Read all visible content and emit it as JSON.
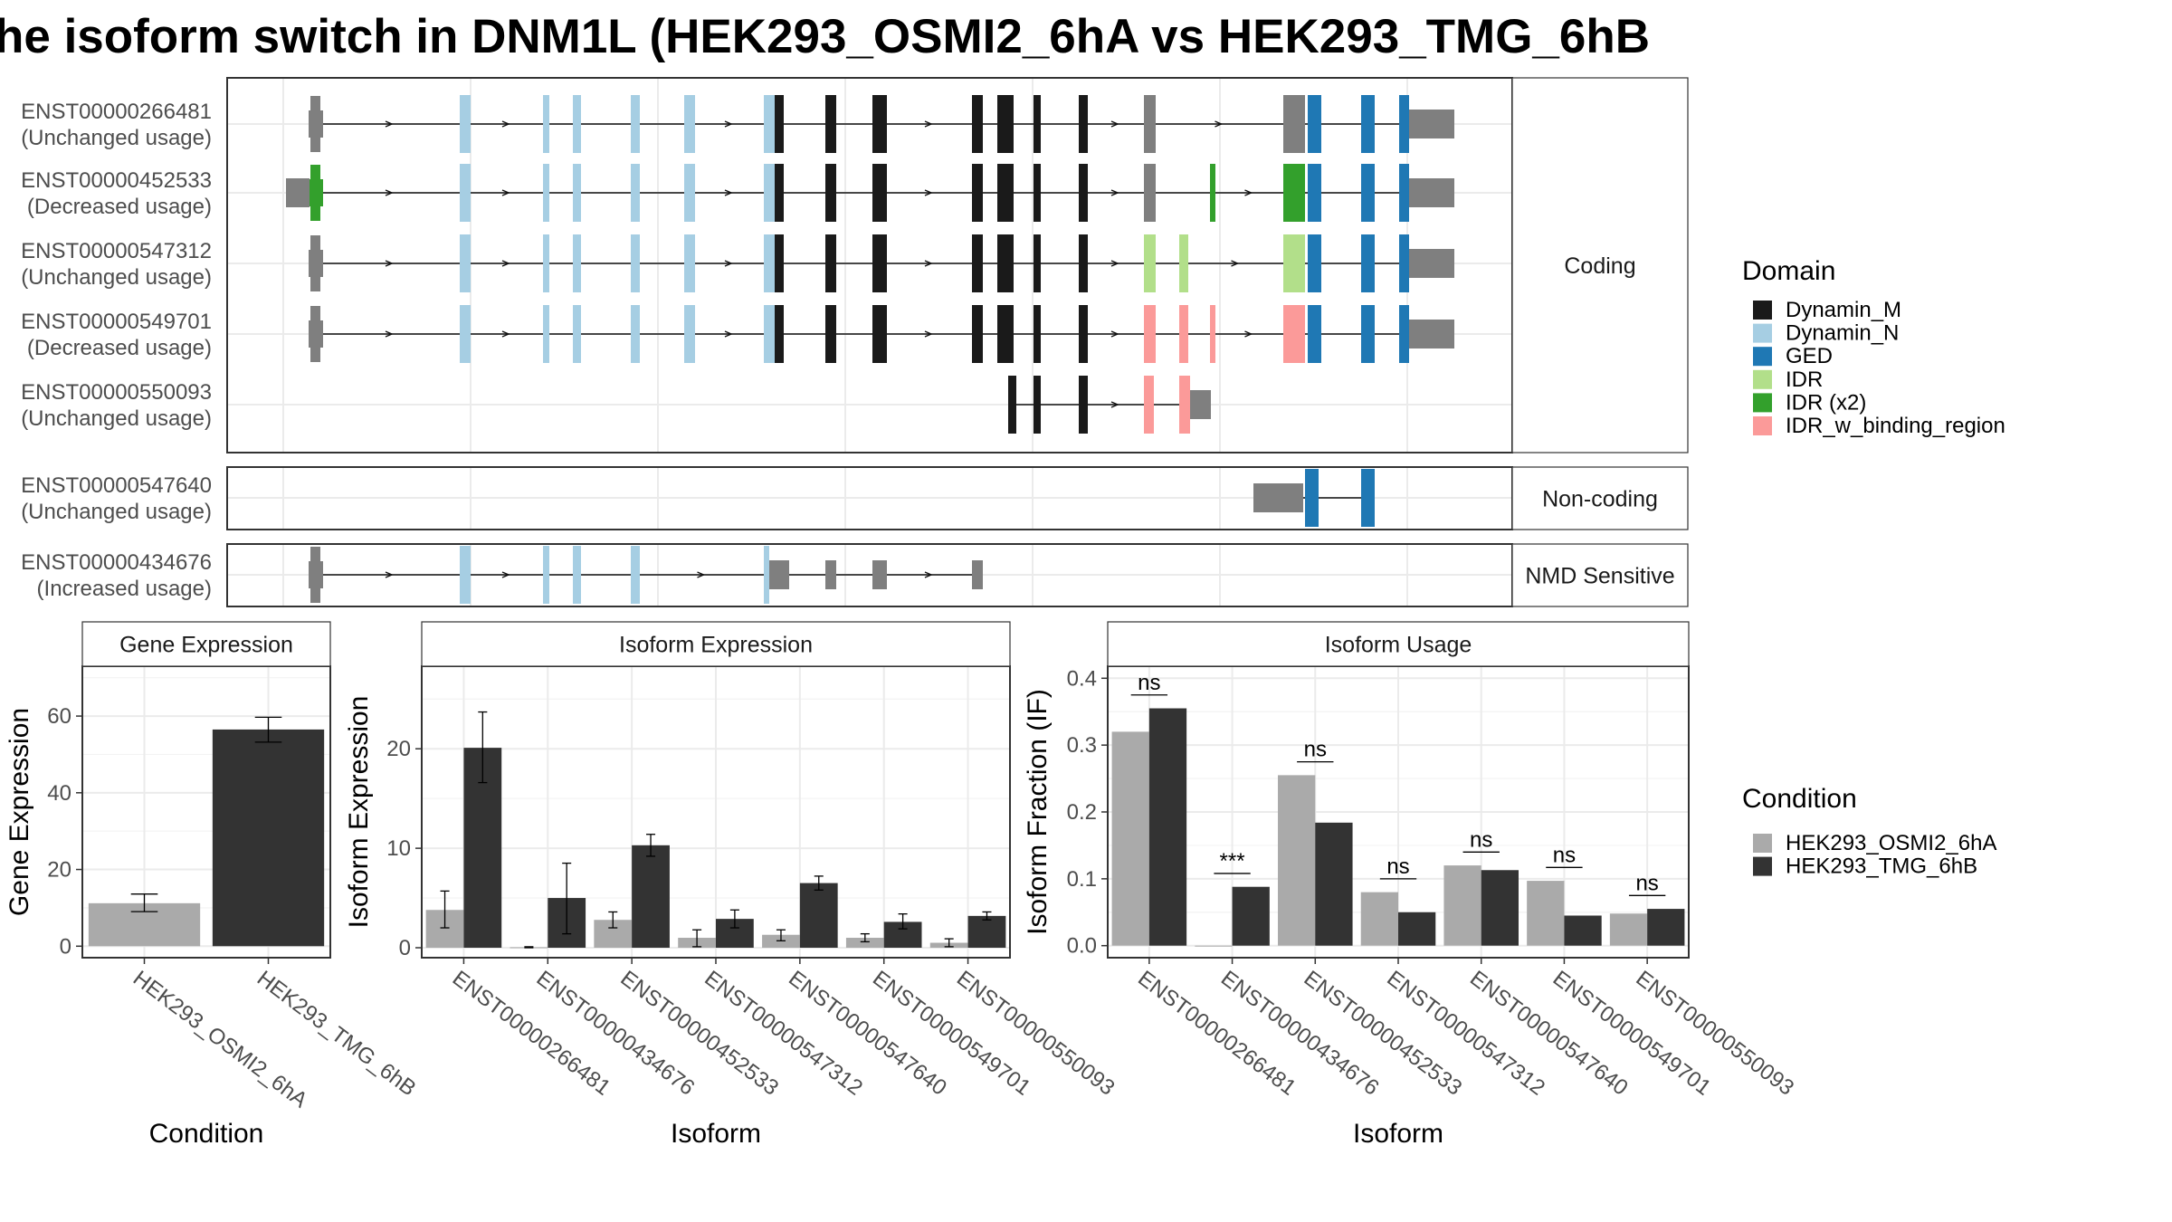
{
  "title": "he isoform switch in DNM1L (HEK293_OSMI2_6hA vs HEK293_TMG_6hB",
  "structure": {
    "groups": [
      {
        "name": "Coding",
        "transcripts": [
          {
            "id": "ENST00000266481",
            "usage": "(Unchanged usage)"
          },
          {
            "id": "ENST00000452533",
            "usage": "(Decreased usage)"
          },
          {
            "id": "ENST00000547312",
            "usage": "(Unchanged usage)"
          },
          {
            "id": "ENST00000549701",
            "usage": "(Decreased usage)"
          },
          {
            "id": "ENST00000550093",
            "usage": "(Unchanged usage)"
          }
        ]
      },
      {
        "name": "Non-coding",
        "transcripts": [
          {
            "id": "ENST00000547640",
            "usage": "(Unchanged usage)"
          }
        ]
      },
      {
        "name": "NMD Sensitive",
        "transcripts": [
          {
            "id": "ENST00000434676",
            "usage": "(Increased usage)"
          }
        ]
      }
    ]
  },
  "legend_domain": {
    "title": "Domain",
    "entries": [
      {
        "label": "Dynamin_M",
        "color": "#1a1a1a"
      },
      {
        "label": "Dynamin_N",
        "color": "#a6cee3"
      },
      {
        "label": "GED",
        "color": "#1f78b4"
      },
      {
        "label": "IDR",
        "color": "#b2df8a"
      },
      {
        "label": "IDR (x2)",
        "color": "#33a02c"
      },
      {
        "label": "IDR_w_binding_region",
        "color": "#fb9a99"
      }
    ]
  },
  "legend_condition": {
    "title": "Condition",
    "entries": [
      {
        "label": "HEK293_OSMI2_6hA",
        "color": "#aaaaaa"
      },
      {
        "label": "HEK293_TMG_6hB",
        "color": "#333333"
      }
    ]
  },
  "chart_data": [
    {
      "type": "bar",
      "title": "Gene Expression",
      "xlabel": "Condition",
      "ylabel": "Gene Expression",
      "ylim": [
        -3,
        73
      ],
      "yticks": [
        0,
        20,
        40,
        60
      ],
      "categories": [
        "HEK293_OSMI2_6hA",
        "HEK293_TMG_6hB"
      ],
      "values": [
        11.2,
        56.5
      ],
      "err_low": [
        9.0,
        53.2
      ],
      "err_high": [
        13.6,
        59.7
      ]
    },
    {
      "type": "bar",
      "title": "Isoform Expression",
      "xlabel": "Isoform",
      "ylabel": "Isoform Expression",
      "ylim": [
        -1,
        28.3
      ],
      "yticks": [
        0,
        10,
        20
      ],
      "categories": [
        "ENST00000266481",
        "ENST00000434676",
        "ENST00000452533",
        "ENST00000547312",
        "ENST00000547640",
        "ENST00000549701",
        "ENST00000550093"
      ],
      "series": [
        {
          "name": "HEK293_OSMI2_6hA",
          "values": [
            3.8,
            0.05,
            2.8,
            1.0,
            1.3,
            1.0,
            0.5
          ],
          "err_low": [
            2.0,
            0.0,
            2.0,
            0.1,
            0.7,
            0.6,
            0.1
          ],
          "err_high": [
            5.7,
            0.1,
            3.6,
            1.8,
            1.8,
            1.4,
            0.9
          ]
        },
        {
          "name": "HEK293_TMG_6hB",
          "values": [
            20.1,
            5.0,
            10.3,
            2.9,
            6.5,
            2.6,
            3.2
          ],
          "err_low": [
            16.6,
            1.4,
            9.2,
            2.0,
            5.8,
            1.9,
            2.8
          ],
          "err_high": [
            23.7,
            8.5,
            11.4,
            3.8,
            7.2,
            3.4,
            3.6
          ]
        }
      ]
    },
    {
      "type": "bar",
      "title": "Isoform Usage",
      "xlabel": "Isoform",
      "ylabel": "Isoform Fraction (IF)",
      "ylim": [
        -0.018,
        0.418
      ],
      "yticks": [
        0.0,
        0.1,
        0.2,
        0.3,
        0.4
      ],
      "ytick_labels": [
        "0.0",
        "0.1",
        "0.2",
        "0.3",
        "0.4"
      ],
      "categories": [
        "ENST00000266481",
        "ENST00000434676",
        "ENST00000452533",
        "ENST00000547312",
        "ENST00000547640",
        "ENST00000549701",
        "ENST00000550093"
      ],
      "series": [
        {
          "name": "HEK293_OSMI2_6hA",
          "values": [
            0.32,
            0.0,
            0.255,
            0.08,
            0.12,
            0.097,
            0.048
          ]
        },
        {
          "name": "HEK293_TMG_6hB",
          "values": [
            0.355,
            0.088,
            0.184,
            0.05,
            0.113,
            0.045,
            0.055
          ]
        }
      ],
      "significance": [
        "ns",
        "***",
        "ns",
        "ns",
        "ns",
        "ns",
        "ns"
      ],
      "sig_y": [
        0.375,
        0.108,
        0.275,
        0.1,
        0.14,
        0.117,
        0.075
      ]
    }
  ]
}
